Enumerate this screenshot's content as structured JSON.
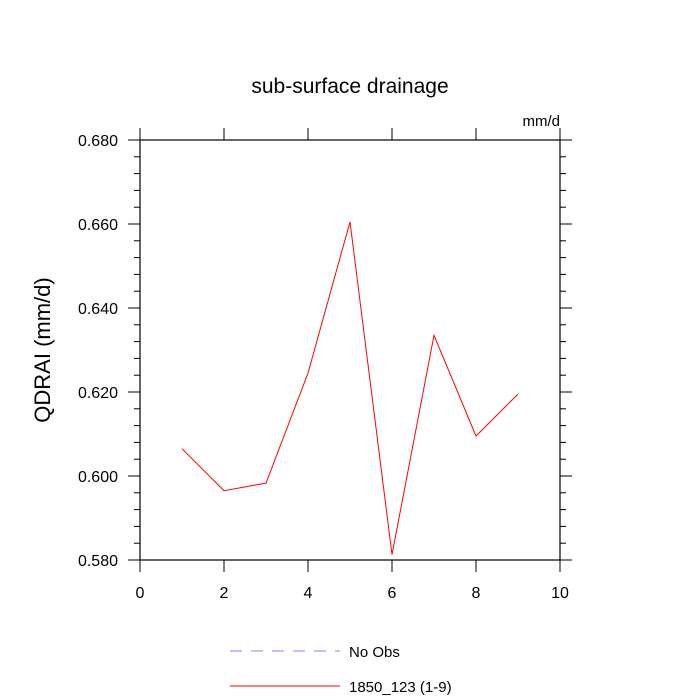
{
  "chart_data": {
    "type": "line",
    "title": "sub-surface drainage",
    "units_label": "mm/d",
    "xlabel": "",
    "ylabel": "QDRAI  (mm/d)",
    "xlim": [
      0,
      10
    ],
    "ylim": [
      0.58,
      0.68
    ],
    "x_ticks": [
      "0",
      "2",
      "4",
      "6",
      "8",
      "10"
    ],
    "y_ticks": [
      "0.580",
      "0.600",
      "0.620",
      "0.640",
      "0.660",
      "0.680"
    ],
    "grid": false,
    "series": [
      {
        "name": "1850_123 (1-9)",
        "color": "#ff0000",
        "style": "solid",
        "x": [
          1,
          2,
          3,
          4,
          5,
          6,
          7,
          8,
          9
        ],
        "y": [
          0.6065,
          0.5965,
          0.5983,
          0.6245,
          0.6605,
          0.5813,
          0.6335,
          0.6095,
          0.6195
        ]
      },
      {
        "name": "No Obs",
        "color": "#8080ff",
        "style": "dashed",
        "x": [],
        "y": []
      }
    ],
    "legend": {
      "placement": "bottom-center",
      "entries": [
        "No Obs",
        "1850_123 (1-9)"
      ]
    }
  }
}
